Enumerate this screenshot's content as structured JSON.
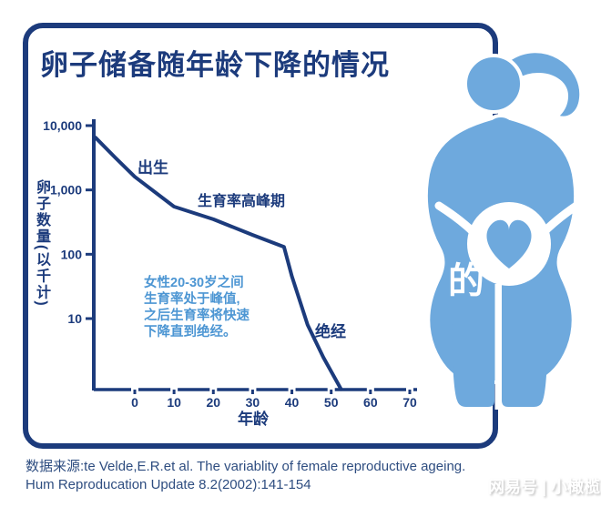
{
  "title": "卵子储备随年龄下降的情况",
  "chart": {
    "y_axis_label": "卵子数量(以千计)",
    "x_axis_label": "年龄",
    "annotations": {
      "birth": "出生",
      "peak": "生育率高峰期",
      "menopause": "绝经",
      "note_lines": [
        "女性20-30岁之间",
        "生育率处于峰值,",
        "之后生育率将快速",
        "下降直到绝经。"
      ]
    }
  },
  "chart_data": {
    "type": "line",
    "title": "卵子储备随年龄下降的情况",
    "xlabel": "年龄",
    "ylabel": "卵子数量(以千计)",
    "y_scale": "log",
    "xlim": [
      -10,
      71
    ],
    "ylim": [
      0.8,
      10000
    ],
    "x": [
      -10,
      -5,
      0,
      10,
      20,
      30,
      38,
      40,
      44,
      48,
      52.5
    ],
    "values": [
      6500,
      3200,
      1600,
      550,
      350,
      200,
      130,
      45,
      8,
      2.5,
      0.8
    ],
    "x_ticks": [
      0,
      10,
      20,
      30,
      40,
      50,
      60,
      70
    ],
    "y_ticks": [
      {
        "v": 10000,
        "label": "10,000"
      },
      {
        "v": 1000,
        "label": "1,000"
      },
      {
        "v": 100,
        "label": "100"
      },
      {
        "v": 10,
        "label": "10"
      }
    ],
    "grid": false,
    "legend": false
  },
  "watermark_center": "的",
  "watermark_footer": "网易号 | 小橄榄",
  "source": {
    "line1": "数据来源:te Velde,E.R.et al. The variablity of female reproductive ageing.",
    "line2": "Hum Reproducation Update 8.2(2002):141-154"
  },
  "colors": {
    "navy": "#1c3b7c",
    "figure_blue": "#6ea9dd",
    "note_blue": "#4d96d3",
    "source_text": "#2e4d80"
  }
}
